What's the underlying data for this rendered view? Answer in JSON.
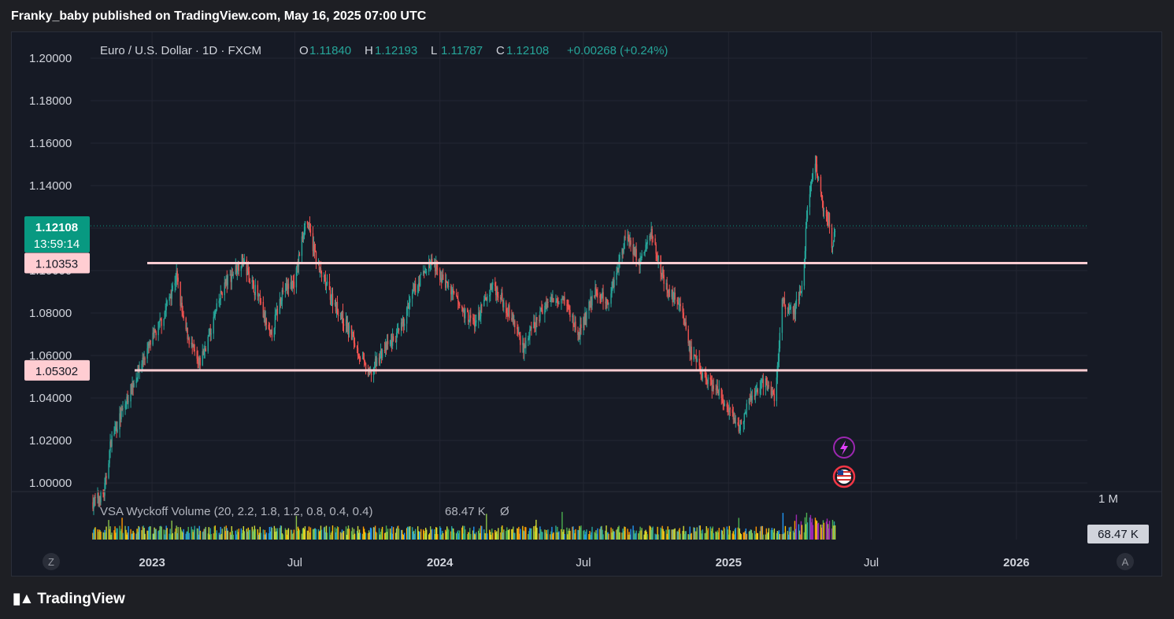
{
  "publisher": "Franky_baby published on TradingView.com, May 16, 2025 07:00 UTC",
  "header": {
    "symbol": "Euro / U.S. Dollar · 1D · FXCM",
    "o_label": "O",
    "o": "1.11840",
    "h_label": "H",
    "h": "1.12193",
    "l_label": "L",
    "l": "1.11787",
    "c_label": "C",
    "c": "1.12108",
    "change": "+0.00268 (+0.24%)"
  },
  "price_badge": {
    "price": "1.12108",
    "countdown": "13:59:14",
    "color": "#089981"
  },
  "levels": [
    {
      "label": "1.10353",
      "value": 1.10353,
      "color": "#ffcdd2"
    },
    {
      "label": "1.05302",
      "value": 1.05302,
      "color": "#ffcdd2"
    }
  ],
  "volume_panel": {
    "title": "VSA Wyckoff Volume (20, 2.2, 1.8, 1.2, 0.8, 0.4, 0.4)",
    "value": "68.47 K",
    "symbol": "Ø",
    "scale_label": "1 M",
    "badge": "68.47 K"
  },
  "bottom_buttons": {
    "left": "Z",
    "right": "A"
  },
  "brand": "TradingView",
  "colors": {
    "up": "#26a69a",
    "down": "#ef5350",
    "level": "#ffcdd2",
    "bg": "#161a25",
    "grid": "#232632"
  },
  "chart_data": {
    "type": "candlestick",
    "title": "Euro / U.S. Dollar · 1D · FXCM",
    "ylim": [
      0.995,
      1.205
    ],
    "y_ticks": [
      1.2,
      1.18,
      1.16,
      1.14,
      1.12,
      1.1,
      1.08,
      1.06,
      1.04,
      1.02,
      1.0
    ],
    "x_ticks": [
      "2023",
      "Jul",
      "2024",
      "Jul",
      "2025",
      "Jul",
      "2026"
    ],
    "x_range": [
      "2022-10-15",
      "2026-04-01"
    ],
    "last_price": 1.12108,
    "close_path": [
      {
        "date": "2022-10-15",
        "close": 0.99
      },
      {
        "date": "2022-11-01",
        "close": 0.995
      },
      {
        "date": "2022-11-10",
        "close": 1.02
      },
      {
        "date": "2022-12-01",
        "close": 1.04
      },
      {
        "date": "2022-12-20",
        "close": 1.058
      },
      {
        "date": "2023-01-15",
        "close": 1.078
      },
      {
        "date": "2023-02-01",
        "close": 1.098
      },
      {
        "date": "2023-02-10",
        "close": 1.075
      },
      {
        "date": "2023-03-01",
        "close": 1.055
      },
      {
        "date": "2023-03-15",
        "close": 1.07
      },
      {
        "date": "2023-04-01",
        "close": 1.092
      },
      {
        "date": "2023-04-25",
        "close": 1.105
      },
      {
        "date": "2023-05-15",
        "close": 1.088
      },
      {
        "date": "2023-05-31",
        "close": 1.068
      },
      {
        "date": "2023-06-15",
        "close": 1.09
      },
      {
        "date": "2023-07-01",
        "close": 1.095
      },
      {
        "date": "2023-07-15",
        "close": 1.125
      },
      {
        "date": "2023-08-01",
        "close": 1.1
      },
      {
        "date": "2023-08-20",
        "close": 1.085
      },
      {
        "date": "2023-09-10",
        "close": 1.07
      },
      {
        "date": "2023-10-03",
        "close": 1.05
      },
      {
        "date": "2023-10-20",
        "close": 1.062
      },
      {
        "date": "2023-11-10",
        "close": 1.07
      },
      {
        "date": "2023-12-01",
        "close": 1.092
      },
      {
        "date": "2023-12-20",
        "close": 1.104
      },
      {
        "date": "2024-01-10",
        "close": 1.093
      },
      {
        "date": "2024-02-01",
        "close": 1.08
      },
      {
        "date": "2024-02-15",
        "close": 1.075
      },
      {
        "date": "2024-03-08",
        "close": 1.094
      },
      {
        "date": "2024-04-01",
        "close": 1.078
      },
      {
        "date": "2024-04-16",
        "close": 1.064
      },
      {
        "date": "2024-05-15",
        "close": 1.085
      },
      {
        "date": "2024-06-05",
        "close": 1.088
      },
      {
        "date": "2024-06-25",
        "close": 1.07
      },
      {
        "date": "2024-07-15",
        "close": 1.09
      },
      {
        "date": "2024-08-01",
        "close": 1.085
      },
      {
        "date": "2024-08-25",
        "close": 1.118
      },
      {
        "date": "2024-09-10",
        "close": 1.103
      },
      {
        "date": "2024-09-25",
        "close": 1.118
      },
      {
        "date": "2024-10-15",
        "close": 1.09
      },
      {
        "date": "2024-11-01",
        "close": 1.085
      },
      {
        "date": "2024-11-15",
        "close": 1.06
      },
      {
        "date": "2024-12-01",
        "close": 1.05
      },
      {
        "date": "2024-12-20",
        "close": 1.042
      },
      {
        "date": "2025-01-13",
        "close": 1.025
      },
      {
        "date": "2025-01-30",
        "close": 1.04
      },
      {
        "date": "2025-02-15",
        "close": 1.048
      },
      {
        "date": "2025-03-01",
        "close": 1.04
      },
      {
        "date": "2025-03-10",
        "close": 1.085
      },
      {
        "date": "2025-03-25",
        "close": 1.08
      },
      {
        "date": "2025-04-05",
        "close": 1.095
      },
      {
        "date": "2025-04-12",
        "close": 1.135
      },
      {
        "date": "2025-04-21",
        "close": 1.15
      },
      {
        "date": "2025-05-01",
        "close": 1.13
      },
      {
        "date": "2025-05-08",
        "close": 1.125
      },
      {
        "date": "2025-05-12",
        "close": 1.11
      },
      {
        "date": "2025-05-16",
        "close": 1.121
      }
    ]
  }
}
